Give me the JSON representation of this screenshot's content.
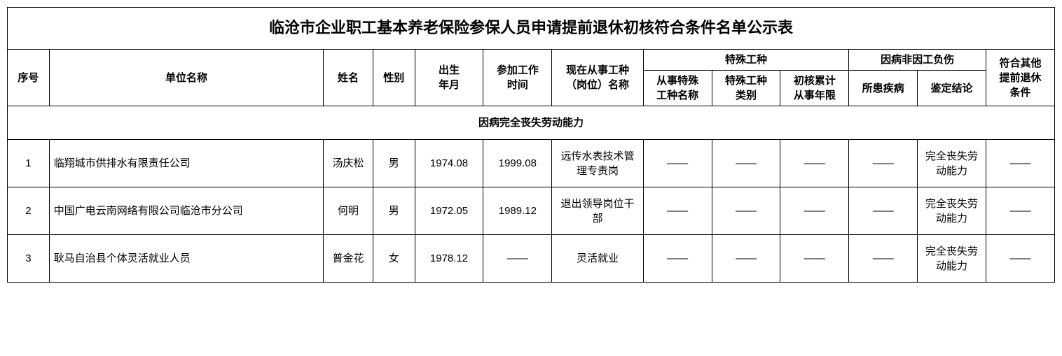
{
  "title": "临沧市企业职工基本养老保险参保人员申请提前退休初核符合条件名单公示表",
  "headers": {
    "seq": "序号",
    "unit": "单位名称",
    "name": "姓名",
    "sex": "性别",
    "birth": "出生\n年月",
    "work_start": "参加工作\n时间",
    "position": "现在从事工种\n（岗位）名称",
    "special_group": "特殊工种",
    "special_name": "从事特殊\n工种名称",
    "special_type": "特殊工种\n类别",
    "special_years": "初核累计\n从事年限",
    "illness_group": "因病非因工负伤",
    "illness_name": "所患疾病",
    "illness_result": "鉴定结论",
    "other": "符合其他\n提前退休\n条件"
  },
  "section_title": "因病完全丧失劳动能力",
  "dash": "——",
  "rows": [
    {
      "seq": "1",
      "unit": "临翔城市供排水有限责任公司",
      "name": "汤庆松",
      "sex": "男",
      "birth": "1974.08",
      "work_start": "1999.08",
      "position": "远传水表技术管理专责岗",
      "sp_name": "——",
      "sp_type": "——",
      "sp_years": "——",
      "ill_name": "——",
      "ill_result": "完全丧失劳动能力",
      "other": "——"
    },
    {
      "seq": "2",
      "unit": "中国广电云南网络有限公司临沧市分公司",
      "name": "何明",
      "sex": "男",
      "birth": "1972.05",
      "work_start": "1989.12",
      "position": "退出领导岗位干部",
      "sp_name": "——",
      "sp_type": "——",
      "sp_years": "——",
      "ill_name": "——",
      "ill_result": "完全丧失劳动能力",
      "other": "——"
    },
    {
      "seq": "3",
      "unit": "耿马自治县个体灵活就业人员",
      "name": "普金花",
      "sex": "女",
      "birth": "1978.12",
      "work_start": "——",
      "position": "灵活就业",
      "sp_name": "——",
      "sp_type": "——",
      "sp_years": "——",
      "ill_name": "——",
      "ill_result": "完全丧失劳动能力",
      "other": "——"
    }
  ],
  "colors": {
    "border": "#000000",
    "background": "#ffffff",
    "text": "#000000"
  },
  "fonts": {
    "title_size": 22,
    "header_size": 15,
    "cell_size": 15
  }
}
